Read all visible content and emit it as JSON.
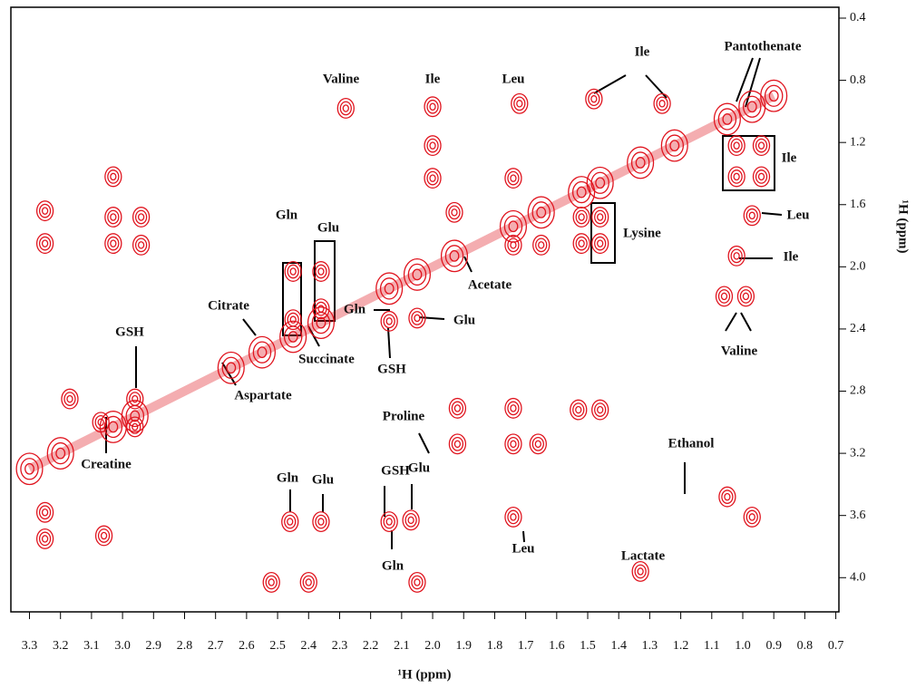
{
  "chart_data": {
    "type": "contour",
    "xlabel": "¹H (ppm)",
    "ylabel": "¹H (ppm)",
    "xlim": [
      3.36,
      0.69
    ],
    "ylim": [
      0.33,
      4.22
    ],
    "xticks": [
      3.3,
      3.2,
      3.1,
      {
        "value": 3,
        "label": "3.0"
      },
      2.9,
      2.8,
      2.7,
      2.6,
      2.5,
      2.4,
      2.3,
      2.2,
      2.1,
      {
        "value": 2,
        "label": "2.0"
      },
      1.9,
      1.8,
      1.7,
      1.6,
      1.5,
      1.4,
      1.3,
      1.2,
      1.1,
      {
        "value": 1,
        "label": "1.0"
      },
      0.9,
      0.8,
      0.7
    ],
    "yticks": [
      0.4,
      0.8,
      1.2,
      1.6,
      {
        "value": 2,
        "label": "2.0"
      },
      2.4,
      2.8,
      3.2,
      3.6,
      {
        "value": 4,
        "label": "4.0"
      }
    ],
    "series": [
      {
        "color": "#e0141e",
        "x": [
          2.28,
          2.0,
          1.72,
          2.0,
          2.0,
          3.03,
          3.03,
          3.03,
          3.25,
          3.25,
          2.94,
          2.94,
          1.93,
          1.74,
          1.74,
          1.65,
          1.52,
          1.52,
          1.46,
          1.46,
          1.02,
          0.94,
          1.02,
          0.94,
          0.97,
          1.02,
          1.06,
          0.99,
          1.48,
          1.26,
          2.45,
          2.36,
          2.45,
          2.36,
          2.14,
          2.05,
          1.92,
          1.74,
          1.53,
          1.46,
          1.92,
          1.74,
          1.66,
          2.46,
          2.36,
          2.14,
          2.07,
          1.74,
          2.52,
          2.4,
          2.05,
          1.33,
          3.06,
          3.25,
          3.25,
          1.05,
          0.97,
          3.07,
          3.17,
          2.96,
          2.96
        ],
        "y": [
          0.98,
          0.97,
          0.95,
          1.22,
          1.43,
          1.42,
          1.68,
          1.85,
          1.64,
          1.85,
          1.68,
          1.86,
          1.65,
          1.43,
          1.86,
          1.86,
          1.68,
          1.85,
          1.68,
          1.85,
          1.22,
          1.22,
          1.42,
          1.42,
          1.67,
          1.93,
          2.19,
          2.19,
          0.92,
          0.95,
          2.03,
          2.03,
          2.34,
          2.27,
          2.35,
          2.33,
          2.91,
          2.91,
          2.92,
          2.92,
          3.14,
          3.14,
          3.14,
          3.64,
          3.64,
          3.64,
          3.63,
          3.61,
          4.03,
          4.03,
          4.03,
          3.96,
          3.73,
          3.58,
          3.75,
          3.48,
          3.61,
          3.0,
          2.85,
          2.85,
          3.03
        ]
      },
      {
        "color": "#e0141e",
        "x": [
          3.3,
          3.2,
          3.03,
          2.96,
          2.65,
          2.55,
          2.45,
          2.36,
          2.14,
          2.05,
          1.93,
          1.74,
          1.65,
          1.52,
          1.46,
          1.33,
          1.22,
          1.05,
          0.97,
          0.9
        ],
        "y": [
          3.3,
          3.2,
          3.03,
          2.96,
          2.65,
          2.55,
          2.45,
          2.36,
          2.14,
          2.05,
          1.93,
          1.74,
          1.65,
          1.52,
          1.46,
          1.33,
          1.22,
          1.05,
          0.97,
          0.9
        ]
      }
    ],
    "annotations": [
      "Valine",
      "Ile",
      "Leu",
      "Ile",
      "Pantothenate",
      "Ile",
      "Leu",
      "Ile",
      "Lysine",
      "Acetate",
      "Gln",
      "Glu",
      "Citrate",
      "Gln",
      "Glu",
      "Succinate",
      "GSH",
      "GSH",
      "Aspartate",
      "Creatine",
      "Proline",
      "Ethanol",
      "Gln",
      "Glu",
      "GSH",
      "Glu",
      "Gln",
      "Leu",
      "Lactate",
      "Valine"
    ]
  }
}
